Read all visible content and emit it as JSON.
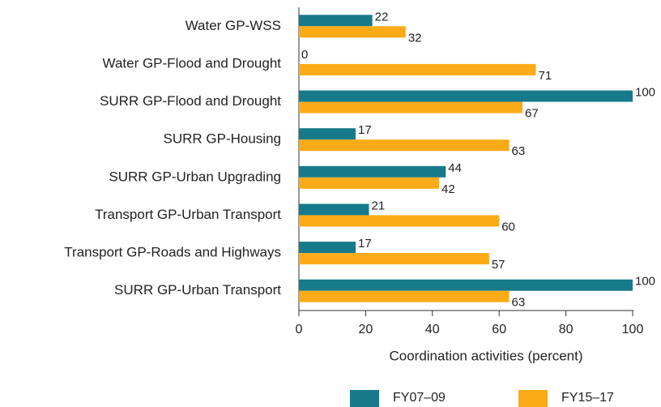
{
  "chart_data": {
    "type": "hbar",
    "categories": [
      "Water GP-WSS",
      "Water GP-Flood and Drought",
      "SURR GP-Flood and Drought",
      "SURR GP-Housing",
      "SURR GP-Urban Upgrading",
      "Transport GP-Urban Transport",
      "Transport GP-Roads and Highways",
      "SURR GP-Urban Transport"
    ],
    "series": [
      {
        "name": "FY07–09",
        "color": "#167a8b",
        "values": [
          22,
          0,
          100,
          17,
          44,
          21,
          17,
          100
        ]
      },
      {
        "name": "FY15–17",
        "color": "#fbab18",
        "values": [
          32,
          71,
          67,
          63,
          42,
          60,
          57,
          63
        ]
      }
    ],
    "xlabel": "Coordination activities (percent)",
    "xlim": [
      0,
      100
    ],
    "xticks": [
      0,
      20,
      40,
      60,
      80,
      100
    ]
  }
}
